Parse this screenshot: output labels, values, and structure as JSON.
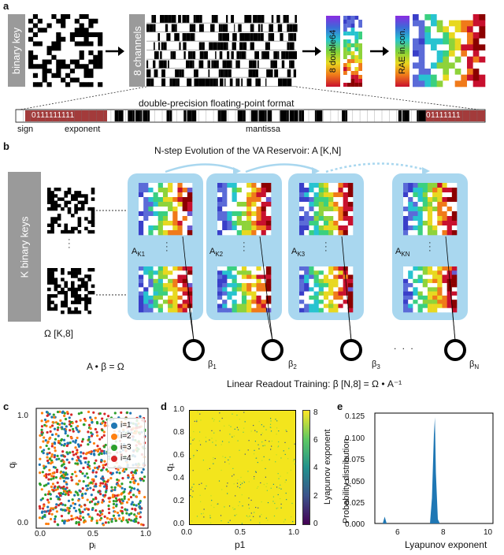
{
  "figure": {
    "panels": {
      "a": {
        "letter": "a",
        "binary_key_label": "binary key",
        "channels_label": "8 channels",
        "double_label": "8 double64",
        "rae_label": "RAE in.con.",
        "format_title": "double-precision floating-point format",
        "bits_left": "0111111111",
        "bits_right": "01111111",
        "sign_label": "sign",
        "exponent_label": "exponent",
        "mantissa_label": "mantissa"
      },
      "b": {
        "letter": "b",
        "title": "N-step Evolution of the VA Reservoir: A [K,N]",
        "keys_label": "K binary keys",
        "omega_label": "Ω [K,8]",
        "equation": "A • β = Ω",
        "readout": "Linear Readout Training: β [N,8] =  Ω • A⁻¹",
        "dots": ". . .",
        "vdots": "·\n·\n·",
        "reservoirs": [
          {
            "label_main": "A",
            "label_sub": "K1"
          },
          {
            "label_main": "A",
            "label_sub": "K2"
          },
          {
            "label_main": "A",
            "label_sub": "K3"
          },
          {
            "label_main": "A",
            "label_sub": "KN"
          }
        ],
        "betas": [
          {
            "main": "β",
            "sub": "1"
          },
          {
            "main": "β",
            "sub": "2"
          },
          {
            "main": "β",
            "sub": "3"
          },
          {
            "main": "β",
            "sub": "N"
          }
        ]
      },
      "c": {
        "letter": "c",
        "xlabel": "pᵢ",
        "ylabel": "qᵢ",
        "ticks": [
          "0.0",
          "0.5",
          "1.0"
        ],
        "legend": [
          {
            "name": "i=1",
            "color": "#1f77b4"
          },
          {
            "name": "i=2",
            "color": "#ff7f0e"
          },
          {
            "name": "i=3",
            "color": "#2ca02c"
          },
          {
            "name": "i=4",
            "color": "#d62728"
          }
        ]
      },
      "d": {
        "letter": "d",
        "xlabel": "p1",
        "ylabel": "q₁",
        "xticks": [
          "0.0",
          "0.5",
          "1.0"
        ],
        "yticks": [
          "0.0",
          "0.2",
          "0.4",
          "0.6",
          "0.8",
          "1.0"
        ],
        "colorbar_label": "Lyapunov exponent",
        "colorbar_ticks": [
          "0",
          "2",
          "4",
          "6",
          "8"
        ],
        "field_color": "#f3e51d"
      },
      "e": {
        "letter": "e",
        "xlabel": "Lyapunov exponent",
        "ylabel": "Probability distribution",
        "xticks": [
          "6",
          "8",
          "10"
        ],
        "yticks": [
          "0.000",
          "0.025",
          "0.050",
          "0.075",
          "0.100",
          "0.125"
        ],
        "color": "#1f77b4"
      }
    }
  },
  "chart_data": [
    {
      "type": "scatter",
      "panel": "c",
      "xlabel": "pᵢ",
      "ylabel": "qᵢ",
      "xlim": [
        0,
        1
      ],
      "ylim": [
        0,
        1
      ],
      "series": [
        {
          "name": "i=1",
          "distribution": "uniform over [0,1]x[0,1]"
        },
        {
          "name": "i=2",
          "distribution": "uniform over [0,1]x[0,1]"
        },
        {
          "name": "i=3",
          "distribution": "uniform over [0,1]x[0,1]"
        },
        {
          "name": "i=4",
          "distribution": "uniform over [0,1]x[0,1]"
        }
      ]
    },
    {
      "type": "heatmap",
      "panel": "d",
      "xlabel": "p1",
      "ylabel": "q₁",
      "xlim": [
        0,
        1
      ],
      "ylim": [
        0,
        1
      ],
      "colorbar_range": [
        0,
        8
      ],
      "dominant_value": 8,
      "colorbar_label": "Lyapunov exponent"
    },
    {
      "type": "area",
      "panel": "e",
      "xlabel": "Lyapunov exponent",
      "ylabel": "Probability distribution",
      "xlim": [
        5,
        11
      ],
      "ylim": [
        0,
        0.13
      ],
      "x": [
        5.4,
        5.5,
        5.6,
        7.8,
        7.9,
        8.0,
        8.05,
        8.1,
        8.2,
        8.3
      ],
      "y": [
        0.0,
        0.008,
        0.0,
        0.0,
        0.03,
        0.105,
        0.125,
        0.06,
        0.005,
        0.0
      ]
    }
  ]
}
